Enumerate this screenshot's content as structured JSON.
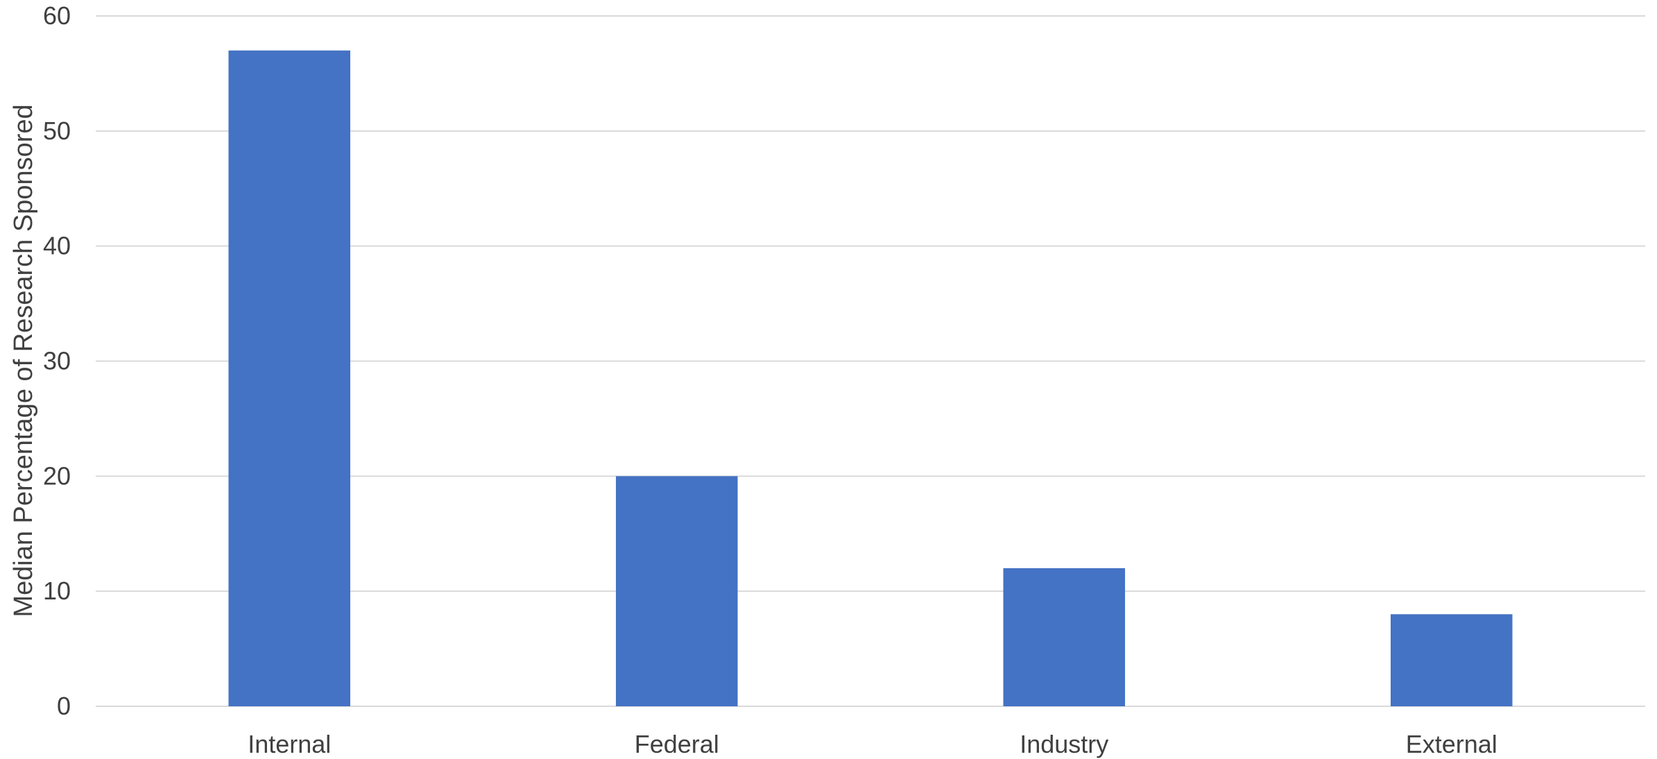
{
  "chart_data": {
    "type": "bar",
    "title": "",
    "xlabel": "",
    "ylabel": "Median Percentage of Research Sponsored",
    "categories": [
      "Internal",
      "Federal",
      "Industry",
      "External"
    ],
    "values": [
      57,
      20,
      12,
      8
    ],
    "ylim": [
      0,
      60
    ],
    "yticks": [
      "0",
      "10",
      "20",
      "30",
      "40",
      "50",
      "60"
    ],
    "grid": true,
    "legend": "none",
    "bar_color": "#4472c4",
    "grid_color": "#d9d9d9",
    "text_color": "#404040"
  }
}
